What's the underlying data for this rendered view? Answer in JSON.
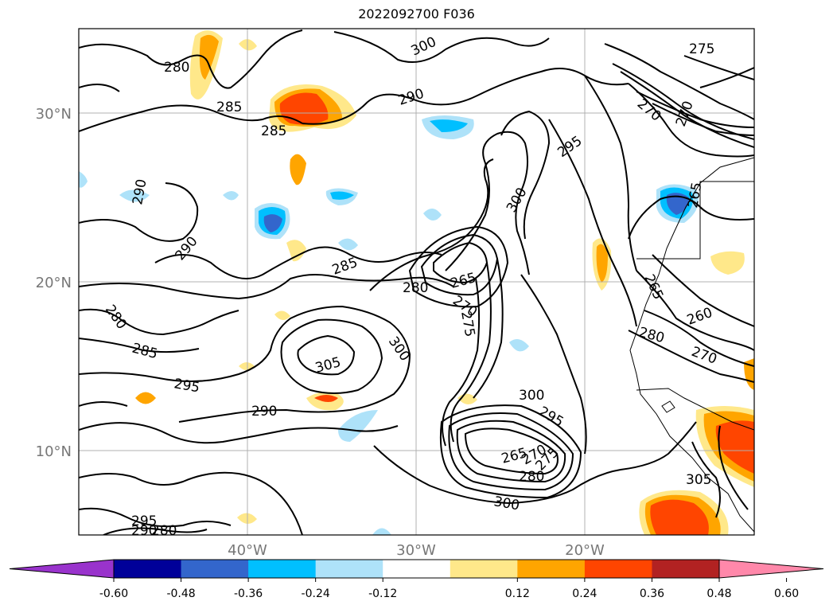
{
  "title": "2022092700 F036",
  "latitude_labels": [
    "30°N",
    "20°N",
    "10°N"
  ],
  "longitude_labels": [
    "40°W",
    "30°W",
    "20°W"
  ],
  "contour_labels": [
    "280",
    "285",
    "285",
    "290",
    "290",
    "290",
    "295",
    "300",
    "300",
    "305",
    "300",
    "285",
    "280",
    "265",
    "270",
    "275",
    "300",
    "295",
    "265",
    "270",
    "275",
    "280",
    "280",
    "275",
    "265",
    "265",
    "260",
    "270",
    "280",
    "285",
    "290",
    "295",
    "295",
    "290",
    "280",
    "305",
    "300",
    "270",
    "270"
  ],
  "colorbar": {
    "tick_labels": [
      "-0.60",
      "-0.48",
      "-0.36",
      "-0.24",
      "-0.12",
      "0.12",
      "0.24",
      "0.36",
      "0.48",
      "0.60"
    ],
    "colors": [
      "#9933cc",
      "#000099",
      "#3366cc",
      "#00bfff",
      "#aee2f9",
      "#ffffff",
      "#ffe88a",
      "#ffa500",
      "#ff4500",
      "#b22222",
      "#ff88aa"
    ]
  }
}
